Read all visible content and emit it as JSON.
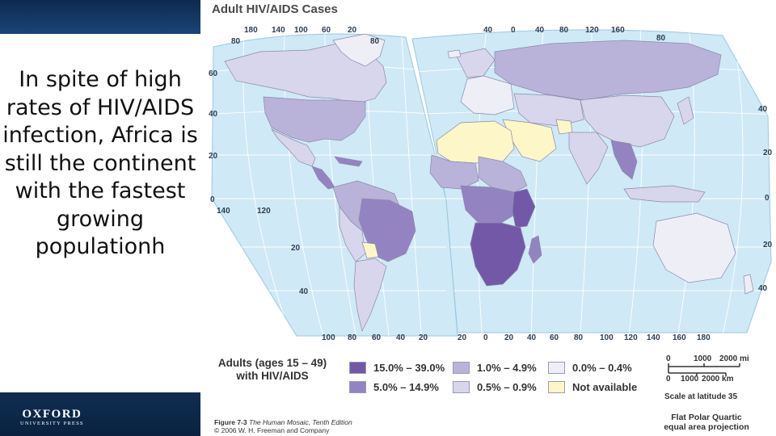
{
  "slide": {
    "text": "In spite of high rates of HIV/AIDS infection, Africa is still the continent with the fastest growing populationh",
    "brand": {
      "line1": "OXFORD",
      "line2": "UNIVERSITY PRESS"
    }
  },
  "map": {
    "title": "Adult HIV/AIDS Cases",
    "top_axis": [
      "180",
      "140",
      "100",
      "60",
      "20",
      "40",
      "0",
      "40",
      "80",
      "120",
      "160"
    ],
    "bottom_axis": [
      "100",
      "80",
      "60",
      "40",
      "20",
      "20",
      "0",
      "20",
      "40",
      "60",
      "80",
      "100",
      "120",
      "140",
      "160",
      "180"
    ],
    "left_axis": [
      "80",
      "60",
      "40",
      "20",
      "0",
      "140",
      "120"
    ],
    "inner_axis": [
      "20",
      "40",
      "80",
      "80"
    ],
    "right_axis": [
      "40",
      "20",
      "0",
      "20",
      "40"
    ],
    "colors": {
      "ocean": "#cfe9f6",
      "grid": "#ffffff",
      "na": "#fdf6c7",
      "c1": "#eeeef7",
      "c2": "#d8d6ec",
      "c3": "#b9b3da",
      "c4": "#9384c1",
      "c5": "#7358a8"
    }
  },
  "legend": {
    "title": "Adults (ages 15 – 49) with HIV/AIDS",
    "items": [
      {
        "label": "15.0% – 39.0%",
        "color": "#7358a8"
      },
      {
        "label": "5.0% – 14.9%",
        "color": "#9384c1"
      },
      {
        "label": "1.0% – 4.9%",
        "color": "#b9b3da"
      },
      {
        "label": "0.5% – 0.9%",
        "color": "#d8d6ec"
      },
      {
        "label": "0.0% – 0.4%",
        "color": "#eeeef7"
      },
      {
        "label": "Not available",
        "color": "#fdf6c7"
      }
    ]
  },
  "scale": {
    "mi": {
      "zero": "0",
      "mid": "1000",
      "end": "2000 mi"
    },
    "km": {
      "zero": "0",
      "mid": "1000",
      "end": "2000 km"
    },
    "note": "Scale at latitude 35"
  },
  "projection": {
    "line1": "Flat Polar Quartic",
    "line2": "equal area projection"
  },
  "caption": {
    "fig": "Figure 7-3",
    "book": "The Human Mosaic, Tenth Edition",
    "copyright": "© 2006 W. H. Freeman and Company"
  }
}
